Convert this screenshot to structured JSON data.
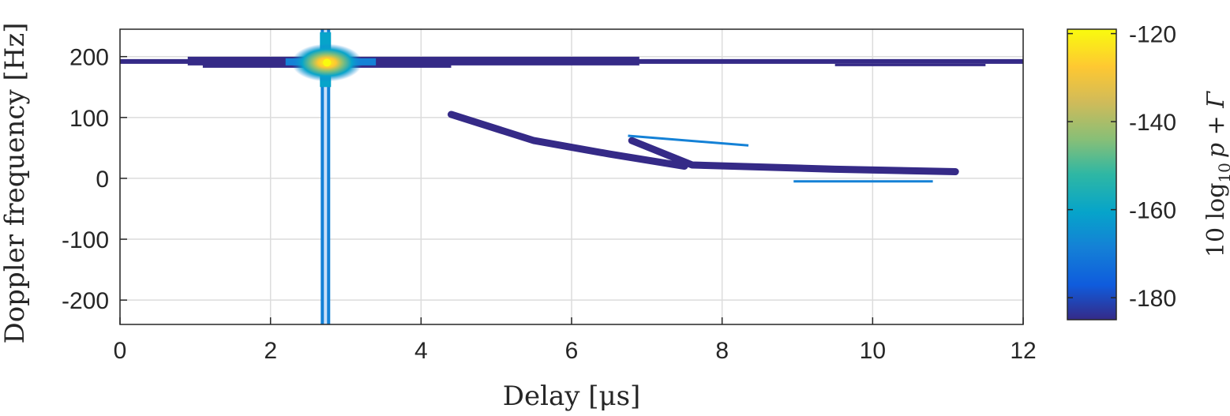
{
  "chart_data": {
    "type": "heatmap",
    "xlabel": "Delay [μs]",
    "ylabel": "Doppler frequency [Hz]",
    "xlim": [
      0,
      12
    ],
    "ylim": [
      -240,
      245
    ],
    "xticks": [
      0,
      2,
      4,
      6,
      8,
      10,
      12
    ],
    "yticks": [
      200,
      100,
      0,
      -100,
      -200
    ],
    "grid": true,
    "colormap": "parula",
    "colorbar": {
      "label_main": "10 log",
      "label_sub": "10",
      "label_rest": "p + Γ",
      "clim": [
        -185,
        -119
      ],
      "ticks": [
        -120,
        -140,
        -160,
        -180
      ],
      "colors": [
        "#352a87",
        "#0f5cdd",
        "#1481d6",
        "#06a4ca",
        "#2eb7a4",
        "#87bf77",
        "#d1bb59",
        "#fec832",
        "#f9fb0e"
      ]
    },
    "features": [
      {
        "name": "horizontal-ridge",
        "kind": "hline",
        "x": [
          0,
          12
        ],
        "y": 192,
        "value": -182
      },
      {
        "name": "vertical-ridge",
        "kind": "vline",
        "x": 2.73,
        "y": [
          -240,
          245
        ],
        "value": -175
      },
      {
        "name": "peak",
        "kind": "point",
        "x": 2.75,
        "y": 190,
        "value": -120
      },
      {
        "name": "scatter-curve-1",
        "kind": "curve",
        "points": [
          [
            4.4,
            105
          ],
          [
            5.5,
            62
          ],
          [
            6.5,
            40
          ],
          [
            7.5,
            20
          ]
        ],
        "value": -182
      },
      {
        "name": "scatter-curve-2",
        "kind": "curve",
        "points": [
          [
            6.8,
            62
          ],
          [
            7.6,
            22
          ],
          [
            9.5,
            15
          ],
          [
            11.1,
            11
          ]
        ],
        "value": -182
      },
      {
        "name": "scatter-line-1",
        "kind": "segment",
        "points": [
          [
            6.75,
            70
          ],
          [
            8.35,
            54
          ]
        ],
        "value": -172
      },
      {
        "name": "scatter-line-2",
        "kind": "segment",
        "points": [
          [
            8.95,
            -5
          ],
          [
            10.8,
            -5
          ]
        ],
        "value": -172
      }
    ]
  }
}
